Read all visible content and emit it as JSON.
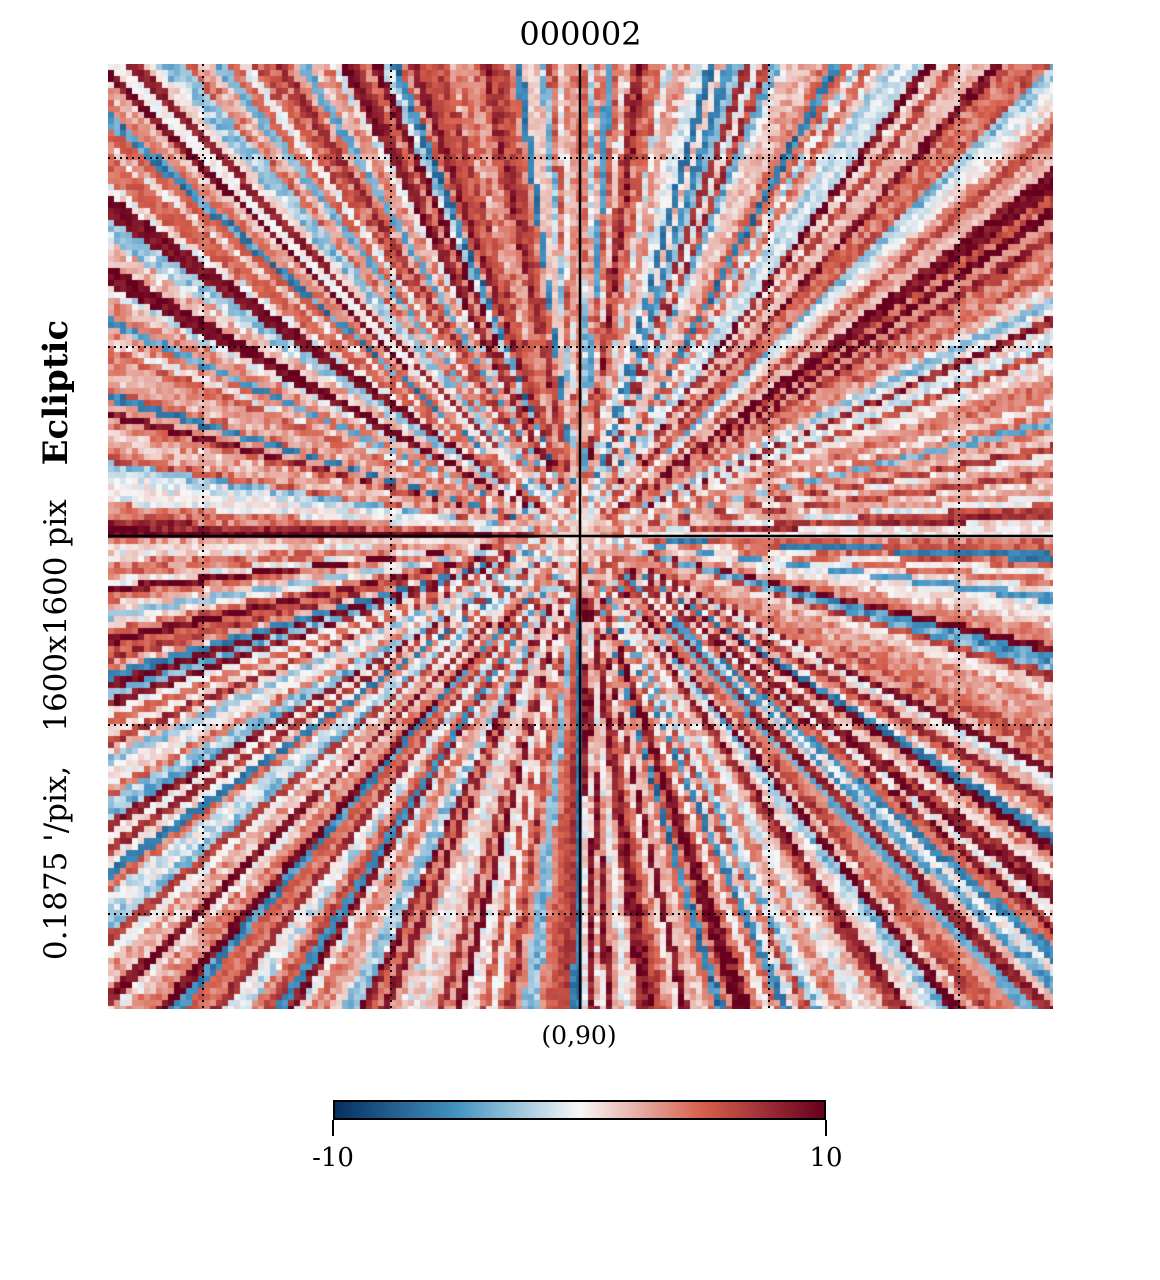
{
  "chart_data": {
    "type": "heatmap",
    "title": "000002",
    "projection_center_label": "(0,90)",
    "coordinate_system": "Ecliptic",
    "resolution_label": "0.1875 '/pix,",
    "size_label": "1600x1600 pix",
    "colormap": "RdBu_r",
    "color_range": [
      -10,
      10
    ],
    "colorbar_ticks": [
      "-10",
      "10"
    ],
    "colorbar_orientation": "horizontal",
    "graticule": "dotted",
    "crosshair": true,
    "colors": {
      "min": "#053061",
      "low": "#4393c3",
      "mid": "#f7f7f7",
      "high": "#d6604d",
      "max": "#67001f"
    }
  }
}
